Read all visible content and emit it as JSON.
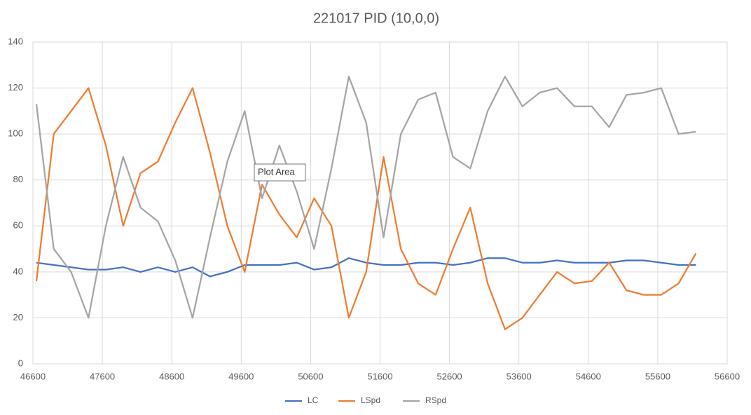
{
  "chart_data": {
    "type": "line",
    "title": "221017 PID (10,0,0)",
    "x": [
      46650,
      46900,
      47150,
      47400,
      47650,
      47900,
      48150,
      48400,
      48650,
      48900,
      49150,
      49400,
      49650,
      49900,
      50150,
      50400,
      50650,
      50900,
      51150,
      51400,
      51650,
      51900,
      52150,
      52400,
      52650,
      52900,
      53150,
      53400,
      53650,
      53900,
      54150,
      54400,
      54650,
      54900,
      55150,
      55400,
      55650,
      55900,
      56150
    ],
    "series": [
      {
        "name": "LC",
        "color": "#4472c4",
        "values": [
          44,
          43,
          42,
          41,
          41,
          42,
          40,
          42,
          40,
          42,
          38,
          40,
          43,
          43,
          43,
          44,
          41,
          42,
          46,
          44,
          43,
          43,
          44,
          44,
          43,
          44,
          46,
          46,
          44,
          44,
          45,
          44,
          44,
          44,
          45,
          45,
          44,
          43,
          43
        ]
      },
      {
        "name": "LSpd",
        "color": "#ed7d31",
        "values": [
          36,
          100,
          110,
          120,
          95,
          60,
          83,
          88,
          105,
          120,
          92,
          60,
          40,
          78,
          65,
          55,
          72,
          60,
          20,
          40,
          90,
          50,
          35,
          30,
          50,
          68,
          35,
          15,
          20,
          30,
          40,
          35,
          36,
          44,
          32,
          30,
          30,
          35,
          48
        ]
      },
      {
        "name": "RSpd",
        "color": "#a5a5a5",
        "values": [
          113,
          50,
          40,
          20,
          60,
          90,
          68,
          62,
          45,
          20,
          55,
          88,
          110,
          72,
          95,
          75,
          50,
          85,
          125,
          105,
          55,
          100,
          115,
          118,
          90,
          85,
          110,
          125,
          112,
          118,
          120,
          112,
          112,
          103,
          117,
          118,
          120,
          100,
          101
        ]
      }
    ],
    "xlim": [
      46600,
      56600
    ],
    "xticks": [
      46600,
      47600,
      48600,
      49600,
      50600,
      51600,
      52600,
      53600,
      54600,
      55600,
      56600
    ],
    "ylim": [
      0,
      140
    ],
    "yticks": [
      0,
      20,
      40,
      60,
      80,
      100,
      120,
      140
    ],
    "grid": true,
    "legend": "bottom",
    "tooltip": "Plot Area"
  }
}
